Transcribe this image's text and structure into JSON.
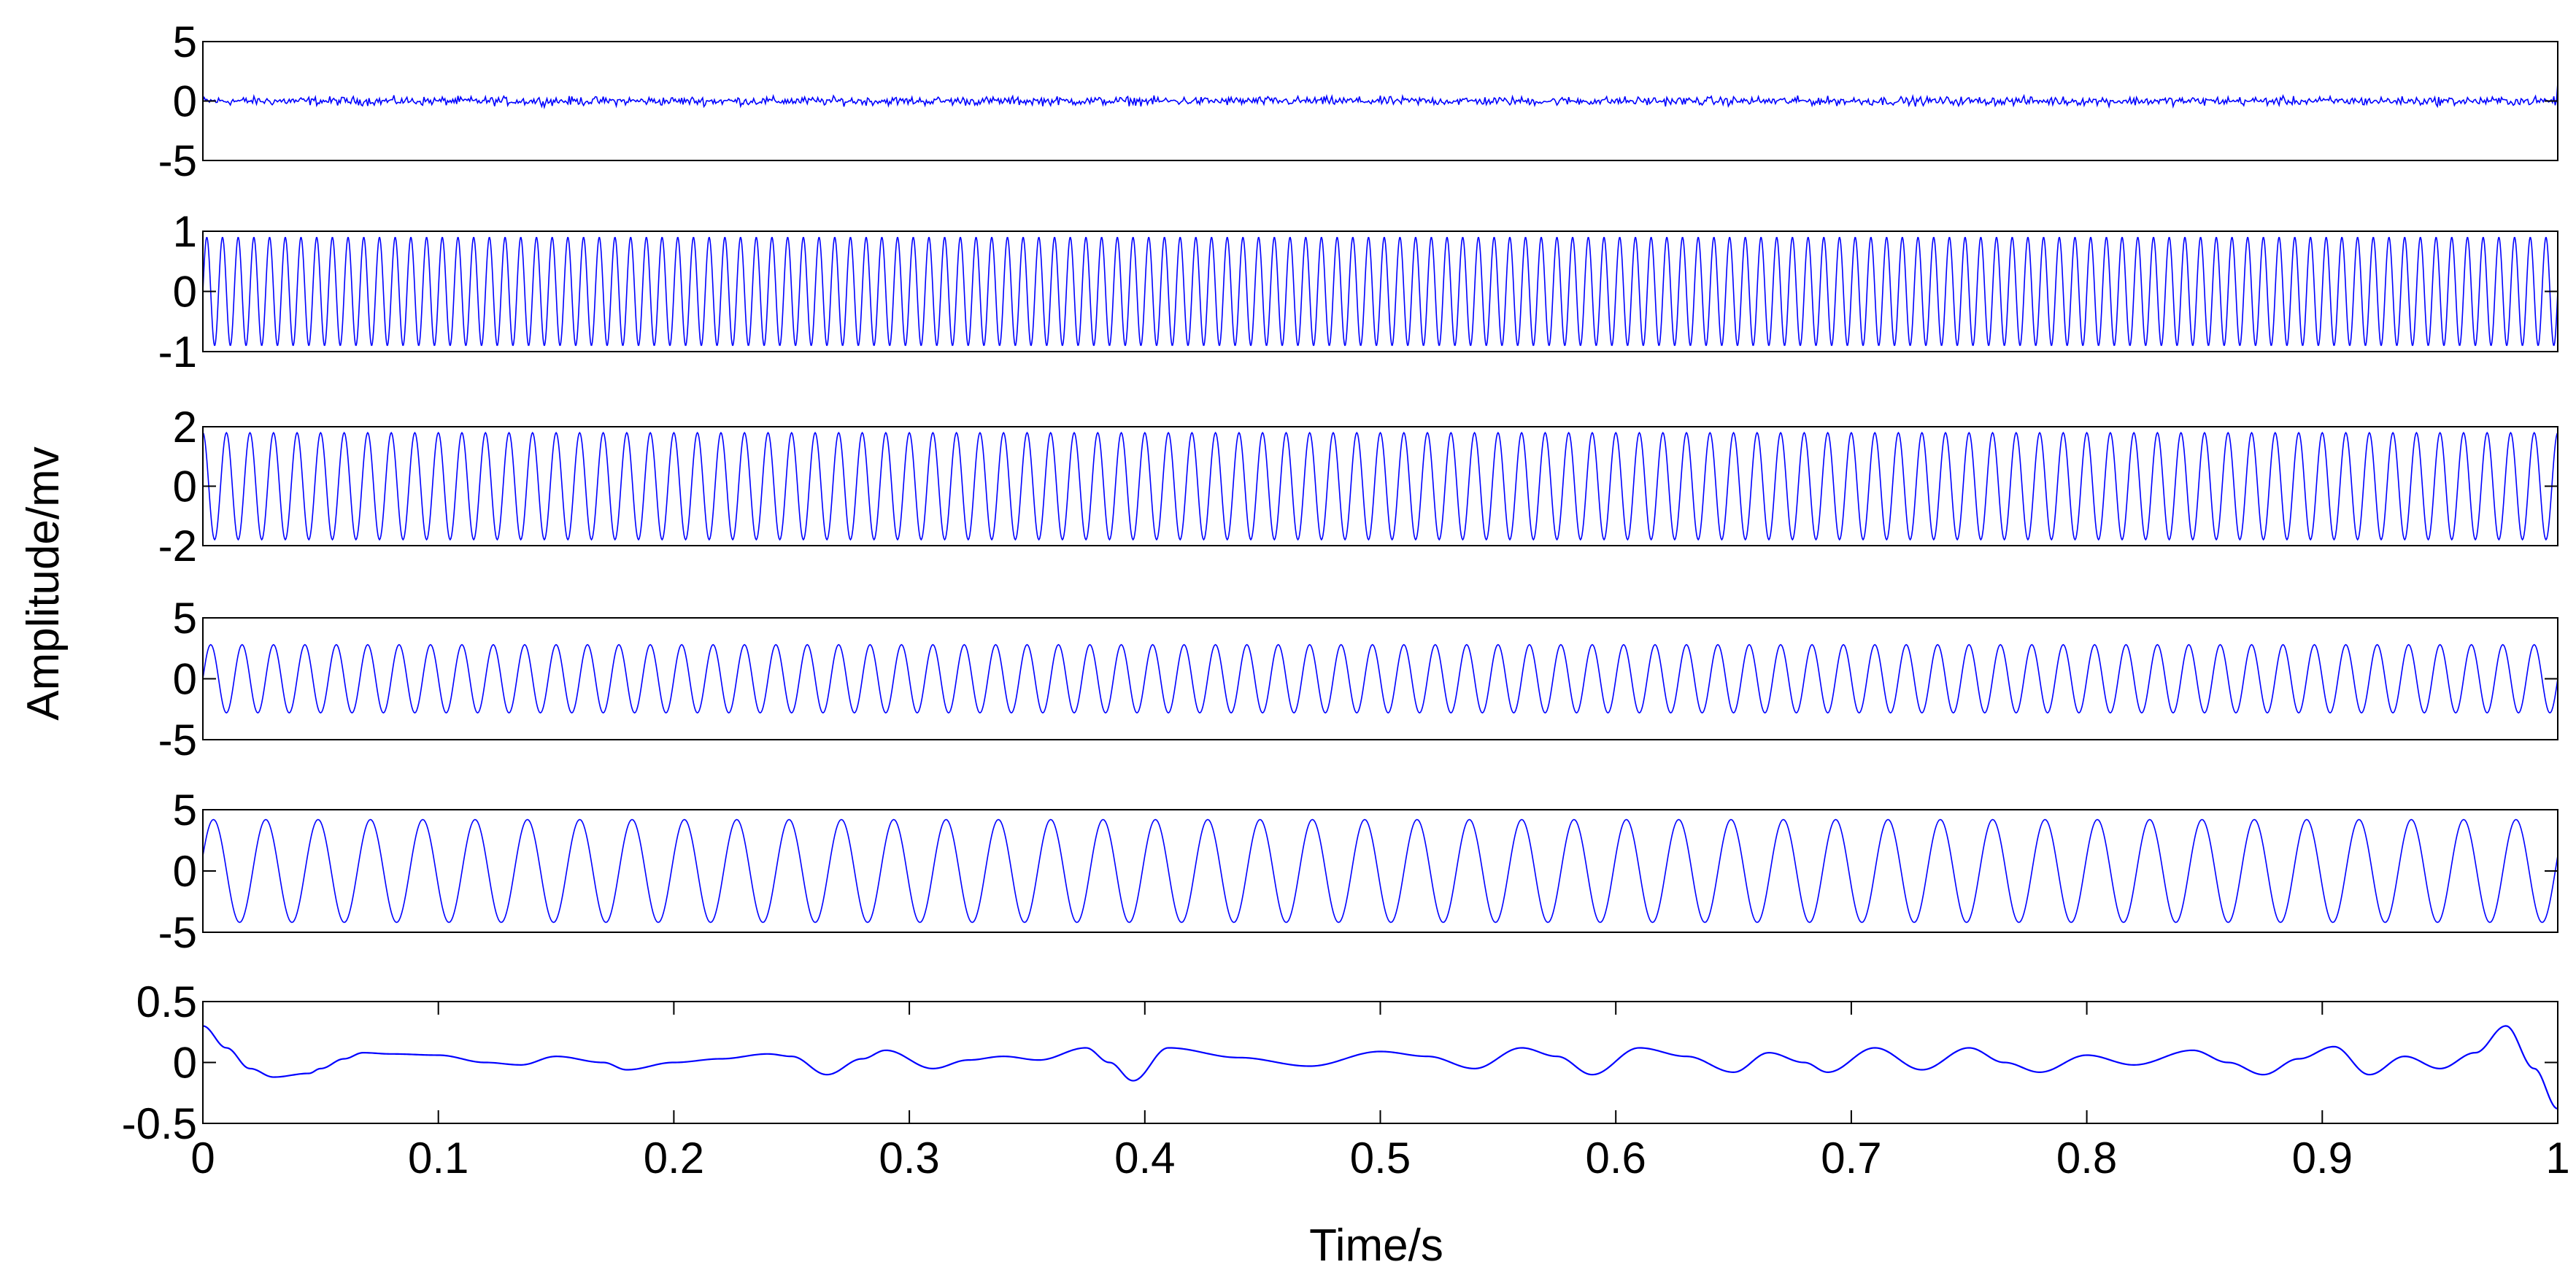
{
  "figure": {
    "ylabel": "Amplitude/mv",
    "xlabel": "Time/s",
    "line_color": "#0000ff",
    "axes_color": "#000000",
    "background": "#ffffff"
  },
  "chart_data": [
    {
      "type": "line",
      "name": "",
      "ylim": [
        -5,
        5
      ],
      "yticks": [
        -5,
        0,
        5
      ],
      "ytick_labels": [
        "-5",
        "0",
        "5"
      ],
      "xlim": [
        0,
        1
      ],
      "show_xtick_labels": false,
      "signal": {
        "kind": "noise",
        "amplitude": 0.4,
        "spike_end": 1.5,
        "samples": 1800
      }
    },
    {
      "type": "line",
      "name": "",
      "ylim": [
        -1,
        1
      ],
      "yticks": [
        -1,
        0,
        1
      ],
      "ytick_labels": [
        "-1",
        "0",
        "1"
      ],
      "xlim": [
        0,
        1
      ],
      "show_xtick_labels": false,
      "signal": {
        "kind": "sine",
        "frequency_hz": 150,
        "amplitude": 0.9,
        "phase": 0,
        "samples": 4500
      }
    },
    {
      "type": "line",
      "name": "",
      "ylim": [
        -2,
        2
      ],
      "yticks": [
        -2,
        0,
        2
      ],
      "ytick_labels": [
        "-2",
        "0",
        "2"
      ],
      "xlim": [
        0,
        1
      ],
      "show_xtick_labels": false,
      "signal": {
        "kind": "sine",
        "frequency_hz": 100,
        "amplitude": 1.8,
        "phase": 1.57,
        "samples": 3000
      }
    },
    {
      "type": "line",
      "name": "",
      "ylim": [
        -5,
        5
      ],
      "yticks": [
        -5,
        0,
        5
      ],
      "ytick_labels": [
        "-5",
        "0",
        "5"
      ],
      "xlim": [
        0,
        1
      ],
      "show_xtick_labels": false,
      "signal": {
        "kind": "sine",
        "frequency_hz": 75,
        "amplitude": 2.8,
        "phase": 0,
        "samples": 2400
      }
    },
    {
      "type": "line",
      "name": "",
      "ylim": [
        -5,
        5
      ],
      "yticks": [
        -5,
        0,
        5
      ],
      "ytick_labels": [
        "-5",
        "0",
        "5"
      ],
      "xlim": [
        0,
        1
      ],
      "show_xtick_labels": false,
      "signal": {
        "kind": "sine",
        "frequency_hz": 45,
        "amplitude": 4.2,
        "phase": 0.3,
        "samples": 1800
      }
    },
    {
      "type": "line",
      "name": "",
      "ylim": [
        -0.5,
        0.5
      ],
      "yticks": [
        -0.5,
        0,
        0.5
      ],
      "ytick_labels": [
        "-0.5",
        "0",
        "0.5"
      ],
      "xlim": [
        0,
        1
      ],
      "xticks": [
        0,
        0.1,
        0.2,
        0.3,
        0.4,
        0.5,
        0.6,
        0.7,
        0.8,
        0.9,
        1
      ],
      "xtick_labels": [
        "0",
        "0.1",
        "0.2",
        "0.3",
        "0.4",
        "0.5",
        "0.6",
        "0.7",
        "0.8",
        "0.9",
        "1"
      ],
      "show_xtick_labels": true,
      "signal": {
        "kind": "points",
        "x": [
          0,
          0.01,
          0.02,
          0.03,
          0.045,
          0.05,
          0.06,
          0.068,
          0.08,
          0.1,
          0.12,
          0.135,
          0.15,
          0.17,
          0.18,
          0.2,
          0.22,
          0.24,
          0.25,
          0.265,
          0.28,
          0.29,
          0.31,
          0.325,
          0.34,
          0.355,
          0.375,
          0.385,
          0.395,
          0.41,
          0.44,
          0.47,
          0.5,
          0.52,
          0.54,
          0.56,
          0.575,
          0.59,
          0.61,
          0.63,
          0.65,
          0.665,
          0.68,
          0.69,
          0.71,
          0.73,
          0.75,
          0.765,
          0.78,
          0.8,
          0.82,
          0.845,
          0.86,
          0.875,
          0.89,
          0.905,
          0.92,
          0.935,
          0.95,
          0.965,
          0.978,
          0.99,
          1
        ],
        "y": [
          0.3,
          0.12,
          -0.05,
          -0.12,
          -0.09,
          -0.05,
          0.03,
          0.08,
          0.07,
          0.06,
          0.0,
          -0.02,
          0.05,
          0.0,
          -0.06,
          0.0,
          0.03,
          0.07,
          0.05,
          -0.1,
          0.03,
          0.1,
          -0.05,
          0.02,
          0.05,
          0.02,
          0.12,
          0.0,
          -0.15,
          0.12,
          0.04,
          -0.03,
          0.09,
          0.05,
          -0.05,
          0.12,
          0.05,
          -0.1,
          0.12,
          0.05,
          -0.08,
          0.08,
          0.0,
          -0.08,
          0.12,
          -0.06,
          0.12,
          0.0,
          -0.08,
          0.06,
          -0.02,
          0.1,
          0.0,
          -0.1,
          0.03,
          0.13,
          -0.1,
          0.05,
          -0.05,
          0.08,
          0.3,
          -0.05,
          -0.38
        ]
      }
    }
  ]
}
